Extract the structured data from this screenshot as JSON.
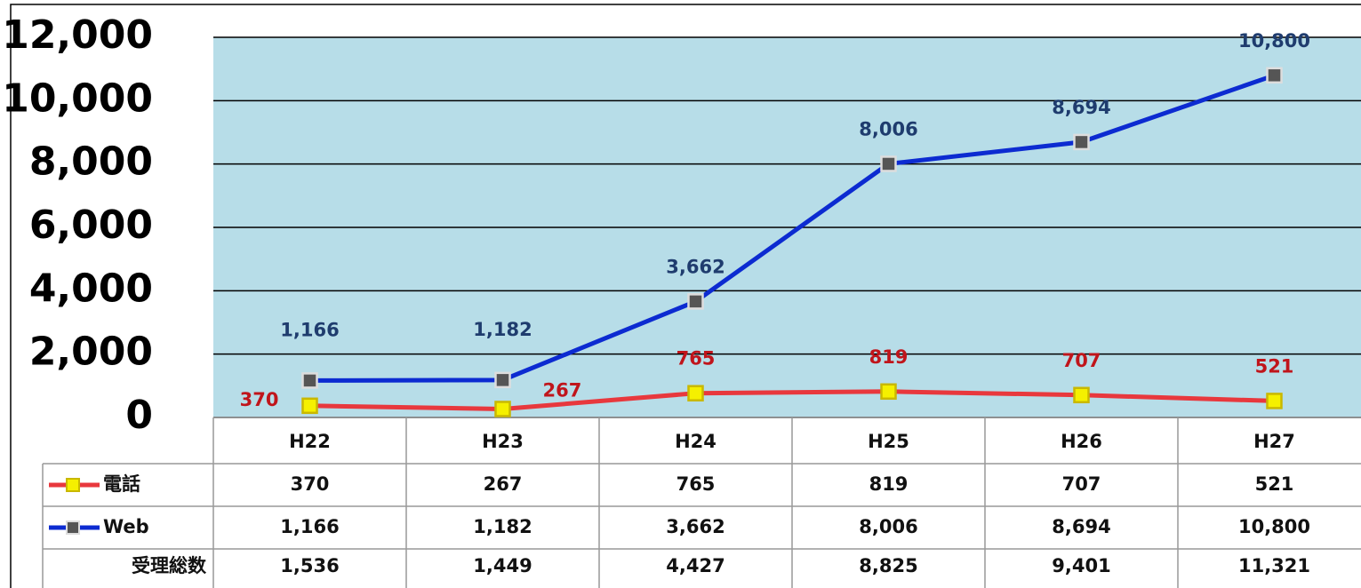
{
  "chart_data": {
    "type": "line",
    "categories": [
      "H22",
      "H23",
      "H24",
      "H25",
      "H26",
      "H27"
    ],
    "series": [
      {
        "name": "電話",
        "color": "#e8383d",
        "label_color": "#c0151b",
        "marker_color": "#f5f000",
        "values": [
          370,
          267,
          765,
          819,
          707,
          521
        ]
      },
      {
        "name": "Web",
        "color": "#0c2bd1",
        "label_color": "#1f3c6e",
        "marker_color": "#555555",
        "values": [
          1166,
          1182,
          3662,
          8006,
          8694,
          10800
        ],
        "value_labels": [
          "1,166",
          "1,182",
          "3,662",
          "8,006",
          "8,694",
          "10,800"
        ]
      }
    ],
    "total": {
      "name": "受理総数",
      "values": [
        1536,
        1449,
        4427,
        8825,
        9401,
        11321
      ],
      "value_labels": [
        "1,536",
        "1,449",
        "4,427",
        "8,825",
        "9,401",
        "11,321"
      ]
    },
    "ylim": [
      0,
      12000
    ],
    "yticks": [
      0,
      {
        "value": 2000,
        "label": "2,000"
      },
      {
        "value": 4000,
        "label": "4,000"
      },
      {
        "value": 6000,
        "label": "6,000"
      },
      {
        "value": 8000,
        "label": "8,000"
      },
      {
        "value": 10000,
        "label": "10,000"
      },
      {
        "value": 12000,
        "label": "12,000"
      }
    ],
    "grid": true,
    "plot_background": "#b7dde8"
  }
}
